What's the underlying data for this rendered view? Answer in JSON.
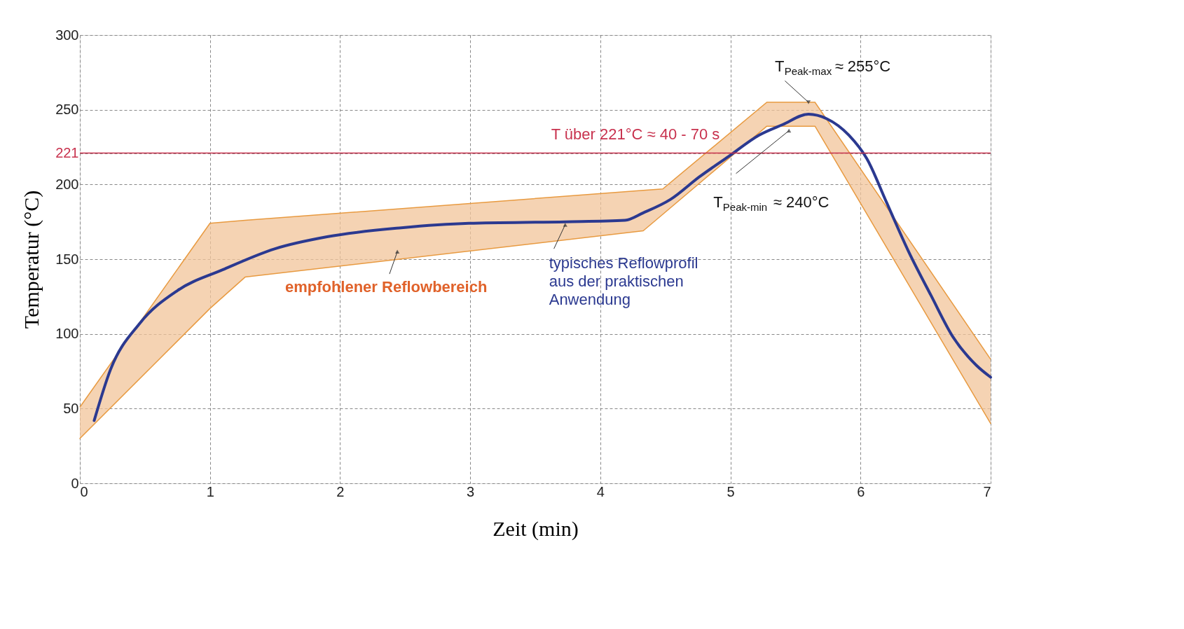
{
  "chart_data": {
    "type": "line",
    "xlabel": "Zeit (min)",
    "ylabel": "Temperatur (°C)",
    "xlim": [
      0,
      7
    ],
    "xticks": [
      0,
      1,
      2,
      3,
      4,
      5,
      6,
      7
    ],
    "ylim": [
      0,
      300
    ],
    "yticks": [
      0,
      50,
      100,
      150,
      200,
      221,
      250,
      300
    ],
    "grid": true,
    "line_style": "solid",
    "marker": "none",
    "series": [
      {
        "type": "area",
        "color": "#f2c49a",
        "x": [
          0,
          1.0,
          1.27,
          4.33,
          4.48,
          5.28,
          5.65,
          7
        ],
        "values": [
          51,
          174,
          176,
          196,
          197,
          255,
          255,
          83
        ]
      },
      {
        "type": "line",
        "color": "#e89a40",
        "x": [
          0,
          1.0,
          1.27,
          4.33,
          4.48,
          5.28,
          5.65,
          7
        ],
        "values": [
          30,
          117,
          138,
          169,
          180,
          239,
          239,
          40
        ]
      },
      {
        "color": "#2b3990",
        "x": [
          0.11,
          0.235,
          0.46,
          0.75,
          1.1,
          1.5,
          1.9,
          2.47,
          2.99,
          3.73,
          4.19,
          4.33,
          4.54,
          4.76,
          4.99,
          5.22,
          5.4,
          5.6,
          5.74,
          5.91,
          6.05,
          6.2,
          6.37,
          6.54,
          6.71,
          6.89,
          7.0
        ],
        "values": [
          42,
          76,
          107,
          129,
          143,
          157,
          165,
          171,
          174,
          175,
          176,
          181,
          190,
          205,
          219,
          233,
          240,
          247,
          244,
          233,
          217,
          188,
          155,
          126,
          98,
          79,
          71
        ]
      }
    ],
    "ref_lines": [
      {
        "axis": "y",
        "value": 221,
        "label": "T über 221°C ≈ 40 - 70 s",
        "color": "#c8324e",
        "line_style": "solid"
      }
    ],
    "annotations": [
      {
        "text": "empfohlener Reflowbereich",
        "x": 2.44,
        "y": 155
      },
      {
        "text": "typisches Reflowprofil\naus der praktischen\nAnwendung",
        "x": 3.73,
        "y": 173
      },
      {
        "text": "T$_{Peak-max}$ ≈ 255°C",
        "x": 5.6,
        "y": 255
      },
      {
        "text": "T$_{Peak-min}$ ≈ 240°C",
        "x": 5.45,
        "y": 236
      }
    ]
  }
}
